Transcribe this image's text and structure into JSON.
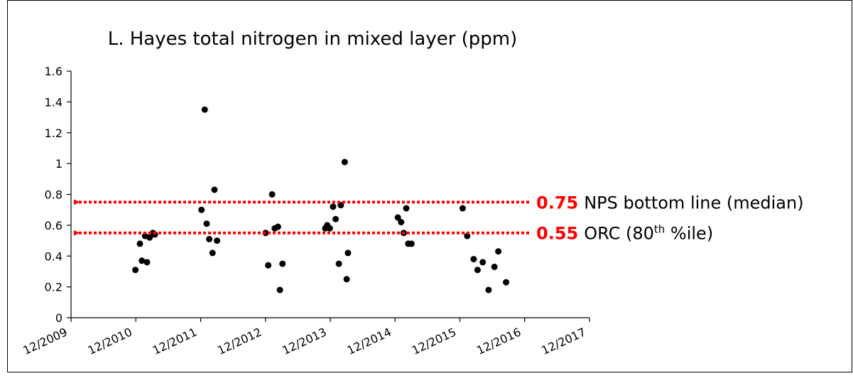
{
  "chart_data": {
    "type": "scatter",
    "title": "L. Hayes total nitrogen in mixed layer (ppm)",
    "color": "#000000",
    "xlim": [
      2009.917,
      2017.917
    ],
    "xticks": [
      {
        "value": 2009.917,
        "label": "12/2009"
      },
      {
        "value": 2010.917,
        "label": "12/2010"
      },
      {
        "value": 2011.917,
        "label": "12/2011"
      },
      {
        "value": 2012.917,
        "label": "12/2012"
      },
      {
        "value": 2013.917,
        "label": "12/2013"
      },
      {
        "value": 2014.917,
        "label": "12/2014"
      },
      {
        "value": 2015.917,
        "label": "12/2015"
      },
      {
        "value": 2016.917,
        "label": "12/2016"
      },
      {
        "value": 2017.917,
        "label": "12/2017"
      }
    ],
    "ylim": [
      0,
      1.6
    ],
    "yticks": [
      0,
      0.2,
      0.4,
      0.6,
      0.8,
      1,
      1.2,
      1.4,
      1.6
    ],
    "x": [
      2010.91,
      2010.98,
      2011.01,
      2011.06,
      2011.09,
      2011.13,
      2011.18,
      2011.21,
      2011.93,
      2011.98,
      2012.01,
      2012.05,
      2012.1,
      2012.13,
      2012.17,
      2012.92,
      2012.96,
      2013.02,
      2013.06,
      2013.11,
      2013.14,
      2013.18,
      2013.84,
      2013.87,
      2013.91,
      2013.96,
      2014.0,
      2014.05,
      2014.08,
      2014.14,
      2014.17,
      2014.19,
      2014.96,
      2015.01,
      2015.05,
      2015.09,
      2015.12,
      2015.17,
      2015.96,
      2016.03,
      2016.13,
      2016.19,
      2016.27,
      2016.36,
      2016.45,
      2016.51,
      2016.63
    ],
    "values": [
      0.31,
      0.48,
      0.37,
      0.53,
      0.36,
      0.52,
      0.55,
      0.54,
      0.7,
      1.35,
      0.61,
      0.51,
      0.42,
      0.83,
      0.5,
      0.55,
      0.34,
      0.8,
      0.58,
      0.59,
      0.18,
      0.35,
      0.58,
      0.6,
      0.58,
      0.72,
      0.64,
      0.35,
      0.73,
      1.01,
      0.25,
      0.42,
      0.65,
      0.62,
      0.55,
      0.71,
      0.48,
      0.48,
      0.71,
      0.53,
      0.38,
      0.31,
      0.36,
      0.18,
      0.33,
      0.43,
      0.23
    ],
    "reference_lines": [
      {
        "value": 0.75,
        "color": "#ff0000",
        "label": [
          {
            "text": "NPS bottom line (median)"
          }
        ]
      },
      {
        "value": 0.55,
        "color": "#ff0000",
        "label": [
          {
            "text": "ORC (80"
          },
          {
            "text": "th",
            "sup": true
          },
          {
            "text": " %ile)"
          }
        ]
      }
    ]
  }
}
